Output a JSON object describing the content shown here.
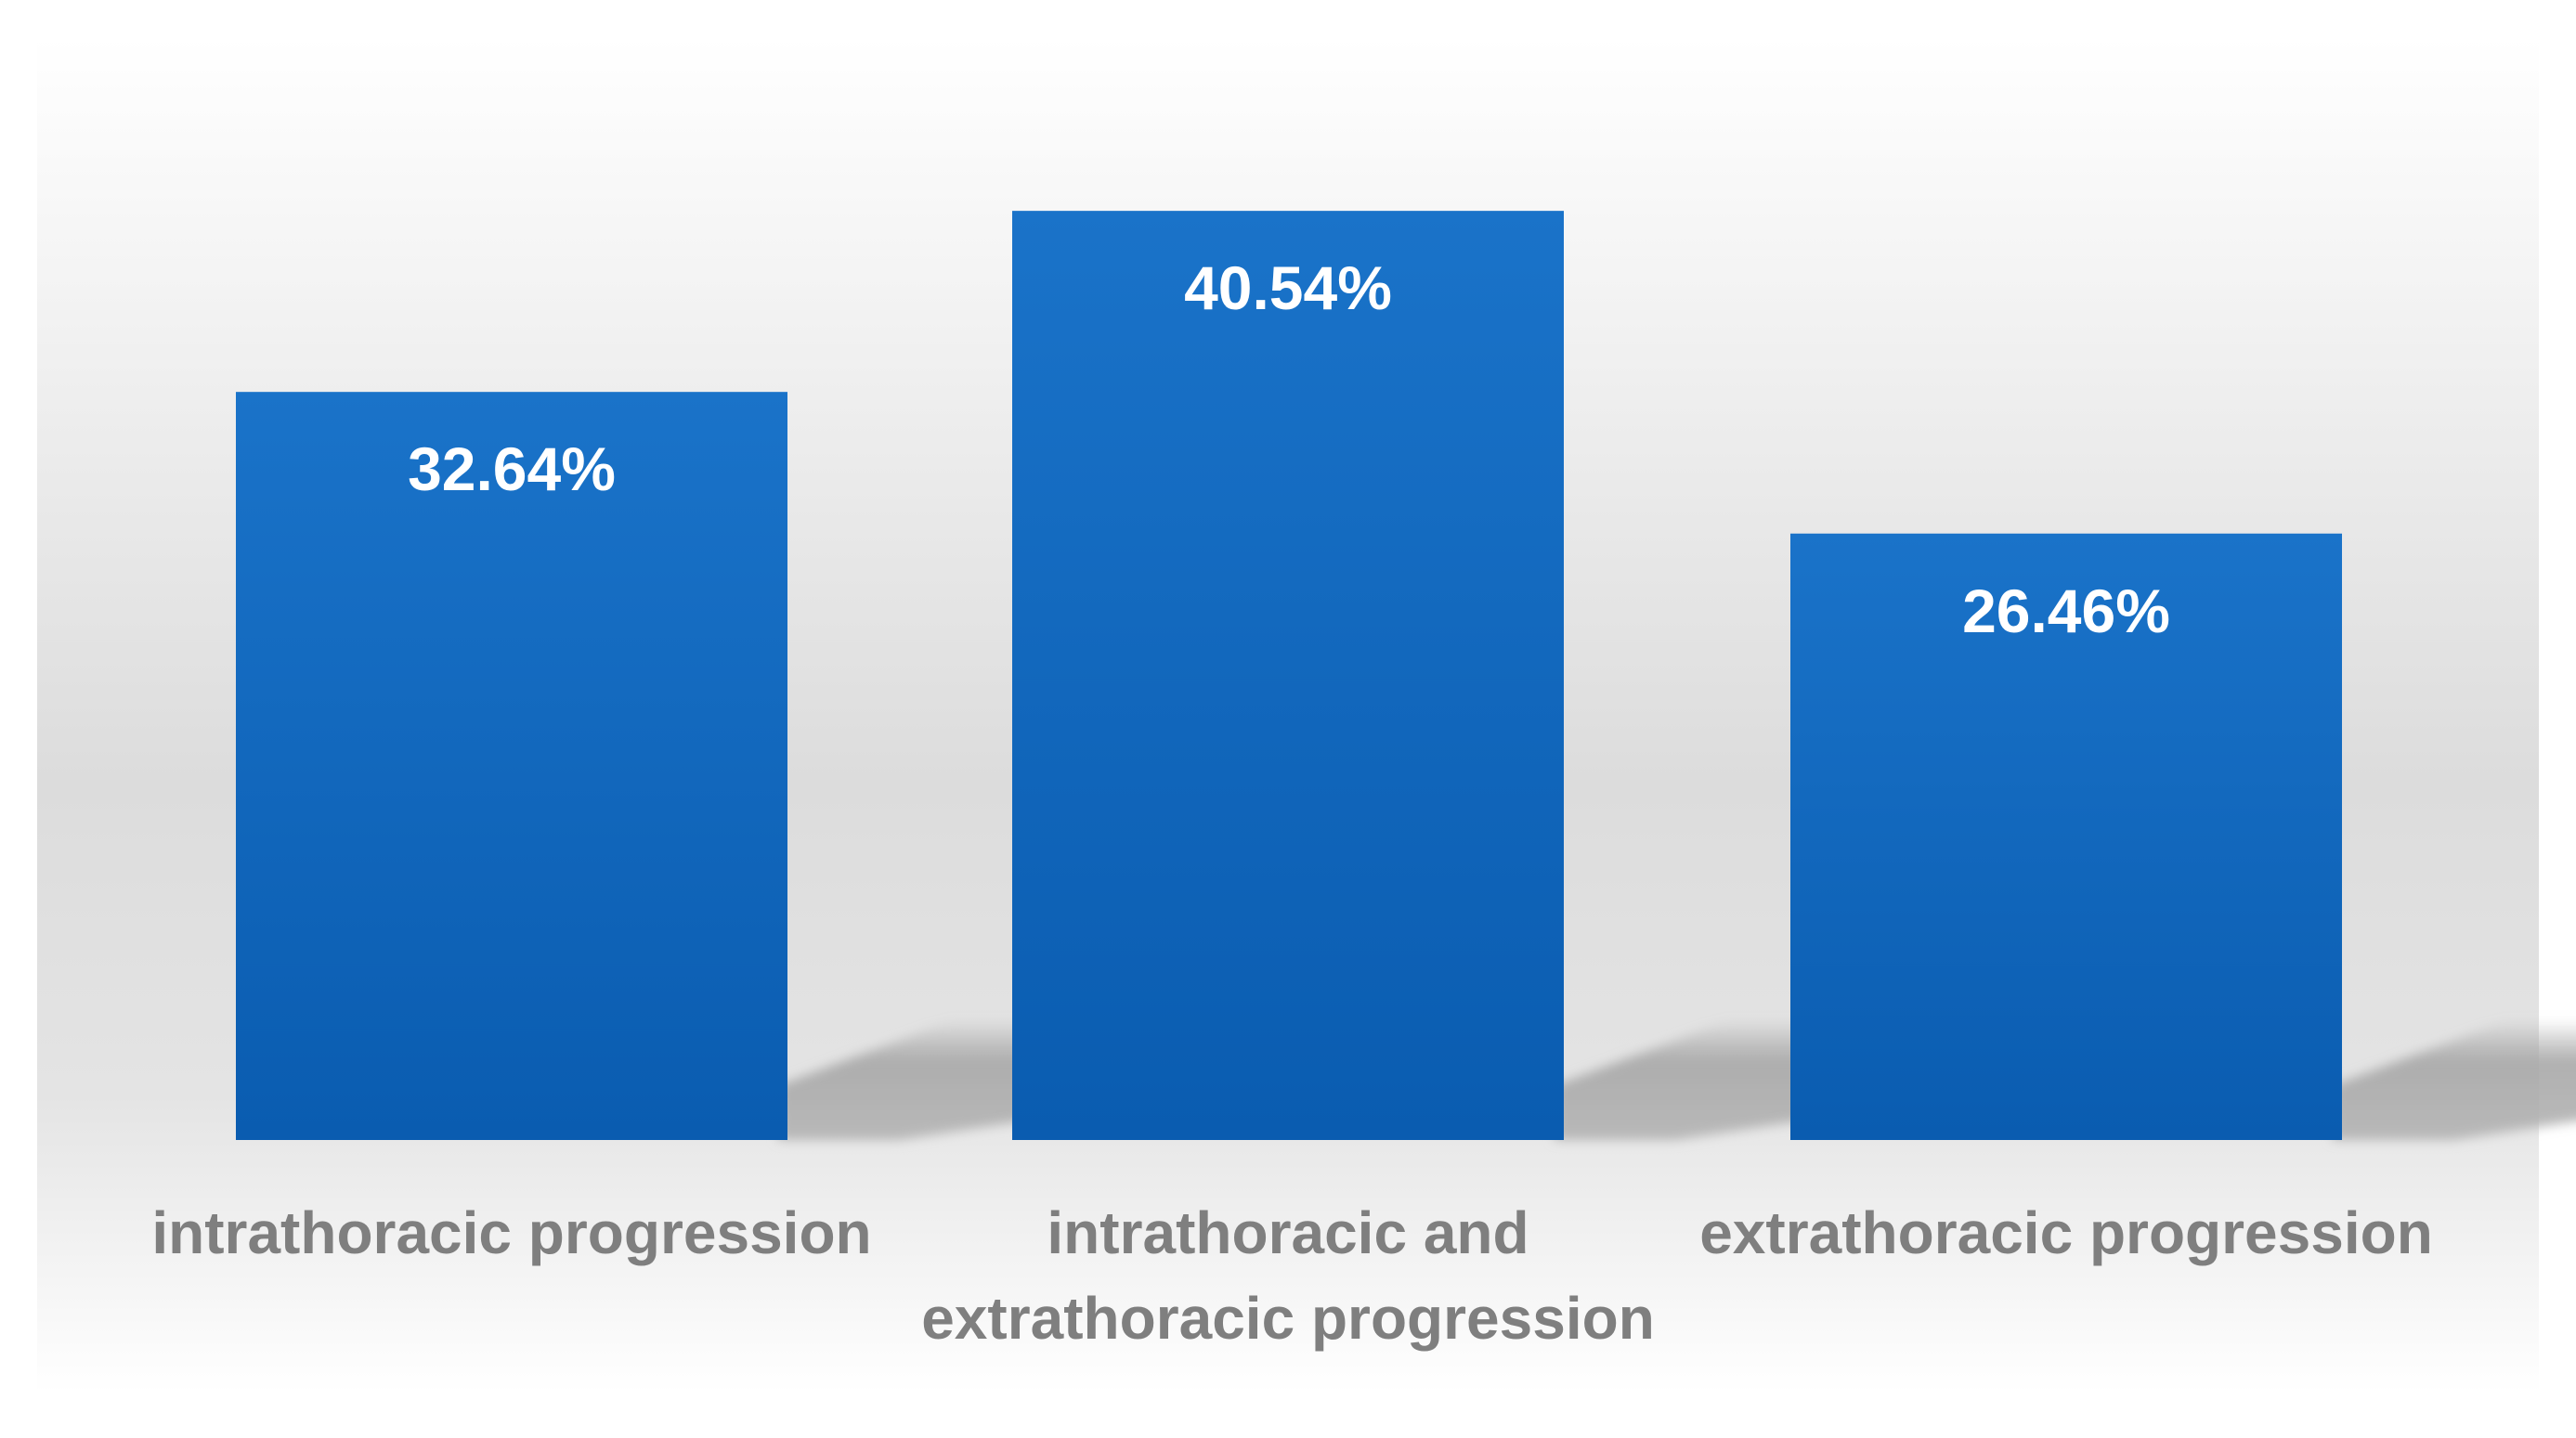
{
  "chart_data": {
    "type": "bar",
    "title": "",
    "xlabel": "",
    "ylabel": "",
    "categories": [
      [
        "intrathoracic progression"
      ],
      [
        "intrathoracic and",
        "extrathoracic progression"
      ],
      [
        "extrathoracic progression"
      ]
    ],
    "values": [
      32.64,
      40.54,
      26.46
    ],
    "value_labels": [
      "32.64%",
      "40.54%",
      "26.46%"
    ],
    "unit": "%",
    "ylim": [
      0,
      46.5
    ],
    "grid": false,
    "legend": "none",
    "colors": {
      "bar_top": "#1a73c9",
      "bar_bottom": "#0a5cb0",
      "value_label": "#ffffff",
      "category_label": "#7f7f7f",
      "shadow": "#a6a6a6",
      "background_mid": "#d9d9d9",
      "background_edge": "#ffffff"
    }
  }
}
